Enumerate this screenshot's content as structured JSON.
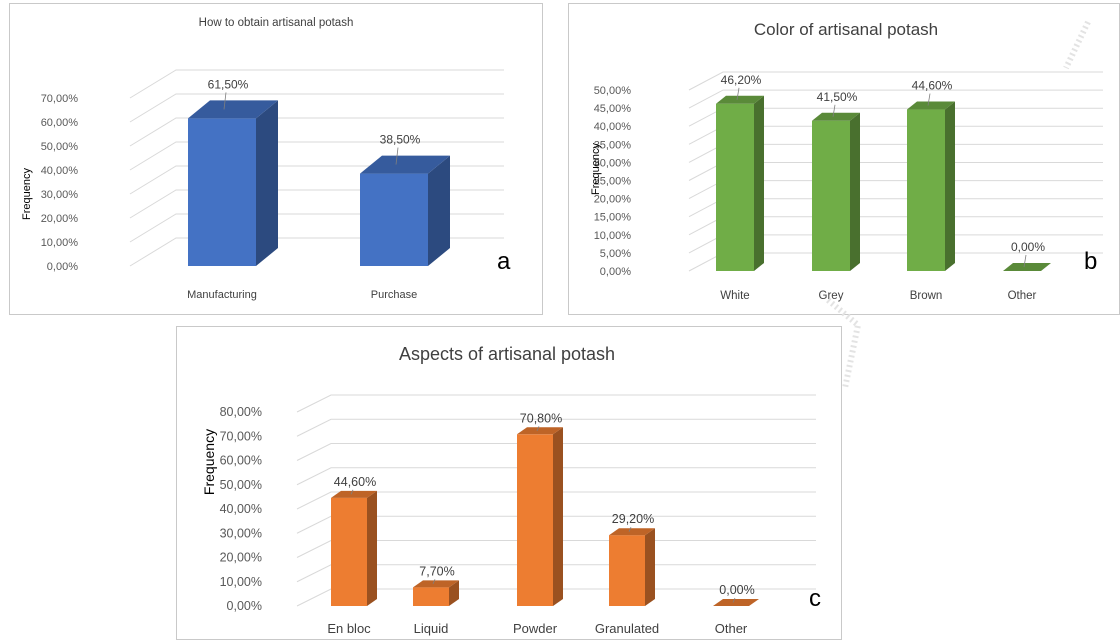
{
  "panels": [
    {
      "letter": "a",
      "ylabel": "Frequency"
    },
    {
      "letter": "b",
      "ylabel": "Frequency"
    },
    {
      "letter": "c",
      "ylabel": "Frequency"
    }
  ],
  "chart_data": [
    {
      "type": "bar",
      "title": "How to obtain artisanal potash",
      "xlabel": "",
      "ylabel": "Frequency",
      "categories": [
        "Manufacturing",
        "Purchase"
      ],
      "values": [
        61.5,
        38.5
      ],
      "data_labels": [
        "61,50%",
        "38,50%"
      ],
      "yticks": [
        "0,00%",
        "10,00%",
        "20,00%",
        "30,00%",
        "40,00%",
        "50,00%",
        "60,00%",
        "70,00%"
      ],
      "ylim": [
        0,
        70
      ],
      "grid": true,
      "style": "3d",
      "color": "#4472C4"
    },
    {
      "type": "bar",
      "title": "Color of artisanal potash",
      "xlabel": "",
      "ylabel": "Frequency",
      "categories": [
        "White",
        "Grey",
        "Brown",
        "Other"
      ],
      "values": [
        46.2,
        41.5,
        44.6,
        0.0
      ],
      "data_labels": [
        "46,20%",
        "41,50%",
        "44,60%",
        "0,00%"
      ],
      "yticks": [
        "0,00%",
        "5,00%",
        "10,00%",
        "15,00%",
        "20,00%",
        "25,00%",
        "30,00%",
        "35,00%",
        "40,00%",
        "45,00%",
        "50,00%"
      ],
      "ylim": [
        0,
        50
      ],
      "grid": true,
      "style": "3d",
      "color": "#70AD47"
    },
    {
      "type": "bar",
      "title": "Aspects of artisanal potash",
      "xlabel": "",
      "ylabel": "Frequency",
      "categories": [
        "En bloc",
        "Liquid",
        "Powder",
        "Granulated",
        "Other"
      ],
      "values": [
        44.6,
        7.7,
        70.8,
        29.2,
        0.0
      ],
      "data_labels": [
        "44,60%",
        "7,70%",
        "70,80%",
        "29,20%",
        "0,00%"
      ],
      "yticks": [
        "0,00%",
        "10,00%",
        "20,00%",
        "30,00%",
        "40,00%",
        "50,00%",
        "60,00%",
        "70,00%",
        "80,00%"
      ],
      "ylim": [
        0,
        80
      ],
      "grid": true,
      "style": "3d",
      "color": "#ED7D31"
    }
  ]
}
